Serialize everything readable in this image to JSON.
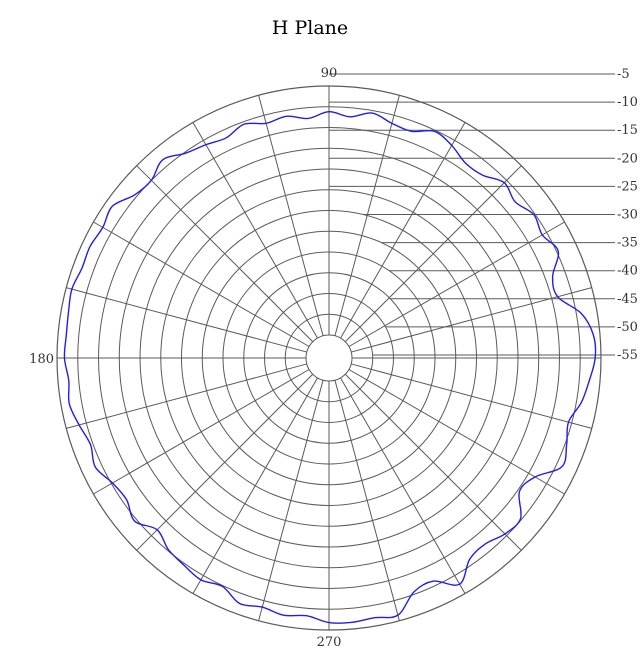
{
  "chart_data": {
    "type": "polar-line",
    "title": "H Plane",
    "angle_ticks": [
      {
        "angle": 90,
        "label": "90"
      },
      {
        "angle": 180,
        "label": "180"
      },
      {
        "angle": 270,
        "label": "270"
      }
    ],
    "radial_ticks": [
      {
        "value": -5,
        "label": "-5"
      },
      {
        "value": -10,
        "label": "-10"
      },
      {
        "value": -15,
        "label": "-15"
      },
      {
        "value": -20,
        "label": "-20"
      },
      {
        "value": -25,
        "label": "-25"
      },
      {
        "value": -30,
        "label": "-30"
      },
      {
        "value": -35,
        "label": "-35"
      },
      {
        "value": -40,
        "label": "-40"
      },
      {
        "value": -45,
        "label": "-45"
      },
      {
        "value": -50,
        "label": "-50"
      },
      {
        "value": -55,
        "label": "-55"
      }
    ],
    "radial_range": [
      -60,
      0
    ],
    "angle_grid_step": 15,
    "grid": true,
    "legend": "none",
    "colors": {
      "series": "#1f1fe6",
      "grid": "#5a5a5a",
      "background": "#ffffff"
    },
    "series": [
      {
        "angles": [
          0,
          5,
          10,
          15,
          20,
          25,
          30,
          35,
          40,
          45,
          50,
          55,
          60,
          65,
          70,
          75,
          80,
          85,
          90,
          95,
          100,
          105,
          110,
          115,
          120,
          125,
          130,
          135,
          140,
          145,
          150,
          155,
          160,
          165,
          170,
          175,
          180,
          185,
          190,
          195,
          200,
          205,
          210,
          215,
          220,
          225,
          230,
          235,
          240,
          245,
          250,
          255,
          260,
          265,
          270,
          275,
          280,
          285,
          290,
          295,
          300,
          305,
          310,
          315,
          320,
          325,
          330,
          335,
          340,
          345,
          350,
          355
        ],
        "values": [
          -1.4,
          -1.6,
          -3.8,
          -8.5,
          -8.2,
          -4.6,
          -6.2,
          -5.3,
          -7.0,
          -5.8,
          -8.0,
          -8.2,
          -6.4,
          -5.3,
          -7.4,
          -7.0,
          -5.6,
          -7.2,
          -6.2,
          -7.6,
          -6.4,
          -7.0,
          -5.6,
          -7.0,
          -6.2,
          -5.3,
          -3.2,
          -5.0,
          -4.4,
          -1.8,
          -2.6,
          -2.0,
          -2.2,
          -1.4,
          -1.8,
          -2.0,
          -1.8,
          -2.6,
          -2.0,
          -3.2,
          -4.4,
          -3.4,
          -5.3,
          -6.0,
          -4.4,
          -7.0,
          -5.3,
          -4.6,
          -3.8,
          -4.8,
          -2.6,
          -3.4,
          -2.6,
          -3.2,
          -1.8,
          -1.6,
          -2.0,
          -1.4,
          -5.6,
          -6.2,
          -2.6,
          -6.4,
          -7.0,
          -5.6,
          -5.3,
          -9.5,
          -8.2,
          -3.6,
          -4.6,
          -5.8,
          -3.8,
          -2.6
        ]
      }
    ]
  }
}
